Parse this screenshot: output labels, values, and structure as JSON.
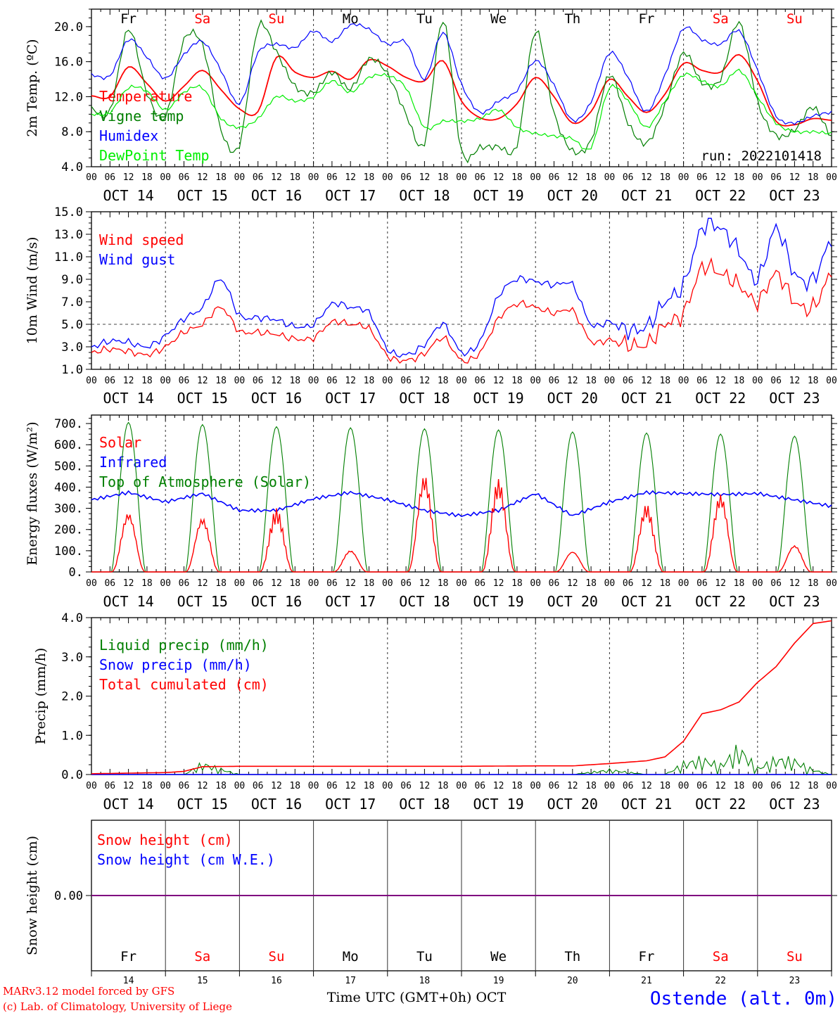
{
  "days": {
    "names": [
      "Fr",
      "Sa",
      "Su",
      "Mo",
      "Tu",
      "We",
      "Th",
      "Fr",
      "Sa",
      "Su"
    ],
    "colors": [
      "#000000",
      "#ff0000",
      "#ff0000",
      "#000000",
      "#000000",
      "#000000",
      "#000000",
      "#000000",
      "#ff0000",
      "#ff0000"
    ],
    "date_labels": [
      "OCT 14",
      "OCT 15",
      "OCT 16",
      "OCT 17",
      "OCT 18",
      "OCT 19",
      "OCT 20",
      "OCT 21",
      "OCT 22",
      "OCT 23"
    ],
    "day_numbers": [
      "14",
      "15",
      "16",
      "17",
      "18",
      "19",
      "20",
      "21",
      "22",
      "23"
    ],
    "hour_ticks": [
      "00",
      "06",
      "12",
      "18"
    ],
    "final_tick": "00"
  },
  "footer": {
    "model_line": "MARv3.12 model forced by GFS",
    "credit_line": "(c) Lab. of Climatology, University of Liege",
    "xlabel": "Time UTC (GMT+0h) OCT",
    "station": "Ostende (alt. 0m)"
  },
  "colors": {
    "red": "#ff0000",
    "green": "#007f00",
    "blue": "#0000ff",
    "lightgreen": "#00ee00",
    "purple": "#7f007f"
  },
  "chart_data": [
    {
      "type": "line",
      "ylabel": "2m Temp. (ºC)",
      "ylim": [
        4,
        22
      ],
      "yticks": [
        "4.0",
        "8.0",
        "12.0",
        "16.0",
        "20.0"
      ],
      "annotation": "run: 2022101418",
      "legend": [
        "Temperature",
        "Vigne temp",
        "Humidex",
        "DewPoint Temp"
      ],
      "x_hours": [
        0,
        6,
        12,
        18,
        24,
        30,
        36,
        42,
        48,
        54,
        60,
        66,
        72,
        78,
        84,
        90,
        96,
        102,
        108,
        114,
        120,
        126,
        132,
        138,
        144,
        150,
        156,
        162,
        168,
        174,
        180,
        186,
        192,
        198,
        204,
        210,
        216,
        222,
        228,
        234,
        240
      ],
      "series": [
        {
          "name": "Temperature",
          "color": "red",
          "values": [
            12.1,
            12.0,
            15.4,
            13.5,
            11.5,
            13.2,
            15.0,
            12.8,
            10.6,
            10.3,
            16.5,
            14.8,
            14.2,
            14.9,
            14.0,
            16.2,
            15.5,
            14.2,
            13.8,
            16.1,
            11.5,
            9.6,
            9.5,
            11.2,
            14.2,
            12.0,
            9.0,
            10.3,
            14.0,
            12.0,
            10.2,
            12.3,
            15.8,
            15.0,
            14.8,
            16.8,
            13.8,
            9.2,
            8.8,
            9.5,
            9.3
          ]
        },
        {
          "name": "Vigne temp",
          "color": "green",
          "values": [
            10.6,
            10.4,
            19.7,
            12.4,
            9.7,
            18.5,
            17.9,
            8.2,
            6.5,
            19.9,
            17.1,
            13.2,
            12.5,
            14.8,
            12.9,
            16.3,
            14.6,
            10.0,
            6.7,
            20.7,
            5.8,
            6.2,
            6.3,
            6.5,
            19.5,
            10.1,
            5.8,
            7.0,
            14.5,
            9.0,
            6.7,
            11.0,
            17.0,
            13.6,
            14.0,
            20.5,
            11.4,
            7.6,
            8.2,
            10.8,
            7.5
          ]
        },
        {
          "name": "Humidex",
          "color": "blue",
          "values": [
            14.5,
            14.4,
            18.5,
            16.5,
            14.1,
            16.8,
            18.3,
            15.0,
            11.2,
            17.0,
            18.0,
            17.6,
            19.5,
            18.3,
            20.2,
            19.7,
            18.0,
            18.2,
            14.0,
            19.3,
            13.4,
            10.2,
            11.5,
            12.7,
            16.1,
            13.3,
            9.3,
            11.4,
            17.0,
            14.2,
            10.3,
            14.5,
            19.8,
            18.5,
            18.0,
            19.5,
            15.0,
            9.8,
            9.0,
            9.8,
            10.2
          ]
        },
        {
          "name": "DewPoint Temp",
          "color": "lightgreen",
          "values": [
            10.0,
            10.2,
            13.0,
            12.6,
            10.5,
            12.5,
            13.0,
            9.5,
            8.5,
            9.5,
            12.0,
            11.5,
            12.0,
            13.8,
            12.5,
            14.2,
            14.4,
            13.0,
            8.5,
            9.2,
            9.2,
            9.5,
            10.5,
            8.5,
            7.8,
            7.5,
            7.2,
            6.2,
            13.0,
            11.5,
            8.5,
            11.5,
            14.5,
            13.8,
            13.2,
            15.0,
            12.0,
            9.0,
            8.0,
            8.0,
            7.8
          ]
        }
      ]
    },
    {
      "type": "line",
      "ylabel": "10m Wind (m/s)",
      "ylim": [
        1,
        15
      ],
      "yticks": [
        "1.0",
        "3.0",
        "5.0",
        "7.0",
        "9.0",
        "11.0",
        "13.0",
        "15.0"
      ],
      "reference_line": 5,
      "legend": [
        "Wind speed",
        "Wind gust"
      ],
      "x_hours": [
        0,
        6,
        12,
        18,
        24,
        30,
        36,
        42,
        48,
        54,
        60,
        66,
        72,
        78,
        84,
        90,
        96,
        102,
        108,
        114,
        120,
        126,
        132,
        138,
        144,
        150,
        156,
        162,
        168,
        174,
        180,
        186,
        192,
        198,
        204,
        210,
        216,
        222,
        228,
        234,
        240
      ],
      "series": [
        {
          "name": "Wind speed",
          "color": "red",
          "values": [
            2.5,
            2.8,
            2.6,
            2.3,
            3.0,
            4.3,
            5.0,
            6.5,
            4.4,
            4.3,
            4.1,
            3.7,
            3.8,
            5.2,
            5.0,
            4.6,
            2.2,
            1.8,
            2.4,
            3.8,
            1.8,
            2.5,
            5.5,
            6.8,
            6.5,
            6.0,
            6.2,
            3.5,
            3.6,
            3.2,
            3.2,
            5.0,
            6.0,
            10.0,
            9.5,
            8.5,
            7.0,
            9.5,
            7.0,
            6.5,
            9.5
          ]
        },
        {
          "name": "Wind gust",
          "color": "blue",
          "values": [
            3.0,
            3.5,
            3.4,
            3.0,
            4.0,
            5.5,
            6.5,
            9.0,
            5.8,
            5.6,
            5.4,
            4.8,
            5.0,
            6.8,
            6.5,
            6.0,
            2.8,
            2.3,
            3.2,
            5.0,
            2.5,
            3.5,
            7.5,
            9.0,
            8.8,
            8.5,
            8.5,
            5.0,
            5.2,
            4.5,
            4.8,
            7.0,
            8.5,
            13.5,
            13.5,
            11.5,
            9.0,
            13.5,
            9.5,
            9.0,
            12.5
          ]
        }
      ]
    },
    {
      "type": "line",
      "ylabel": "Energy fluxes (W/m²)",
      "ylim": [
        0,
        740
      ],
      "yticks": [
        "0.",
        "100.",
        "200.",
        "300.",
        "400.",
        "500.",
        "600.",
        "700."
      ],
      "legend": [
        "Solar",
        "Infrared",
        "Top of Atmosphere (Solar)"
      ],
      "toa_peaks": [
        705,
        695,
        685,
        680,
        675,
        670,
        660,
        655,
        650,
        640
      ],
      "solar_peaks": [
        285,
        260,
        300,
        105,
        460,
        440,
        100,
        320,
        370,
        130
      ],
      "infrared": {
        "x_hours": [
          0,
          12,
          24,
          36,
          48,
          60,
          72,
          84,
          96,
          108,
          120,
          132,
          144,
          156,
          168,
          180,
          192,
          204,
          216,
          228,
          240
        ],
        "values": [
          340,
          375,
          330,
          370,
          290,
          290,
          345,
          375,
          340,
          290,
          265,
          290,
          370,
          265,
          330,
          375,
          370,
          365,
          370,
          340,
          310
        ]
      }
    },
    {
      "type": "line",
      "ylabel": "Precip (mm/h)",
      "ylim": [
        0,
        4
      ],
      "yticks": [
        "0.0",
        "1.0",
        "2.0",
        "3.0",
        "4.0"
      ],
      "legend": [
        "Liquid precip (mm/h)",
        "Snow precip (mm/h)",
        "Total cumulated (cm)"
      ],
      "x_hours": [
        0,
        24,
        30,
        36,
        48,
        72,
        96,
        120,
        144,
        156,
        168,
        180,
        186,
        192,
        198,
        204,
        210,
        216,
        222,
        228,
        234,
        240
      ],
      "series": [
        {
          "name": "Total cumulated (cm)",
          "color": "red",
          "values": [
            0.02,
            0.05,
            0.08,
            0.2,
            0.21,
            0.21,
            0.21,
            0.21,
            0.22,
            0.22,
            0.28,
            0.35,
            0.45,
            0.85,
            1.55,
            1.65,
            1.85,
            2.35,
            2.75,
            3.35,
            3.85,
            3.92
          ]
        },
        {
          "name": "Liquid precip (mm/h)",
          "color": "green",
          "values": [
            0.0,
            0.0,
            0.0,
            0.35,
            0.0,
            0.0,
            0.0,
            0.0,
            0.0,
            0.0,
            0.15,
            0.0,
            0.0,
            0.35,
            0.5,
            0.3,
            0.85,
            0.2,
            0.5,
            0.45,
            0.15,
            0.0
          ]
        }
      ]
    },
    {
      "type": "line",
      "ylabel": "Snow height (cm)",
      "ylim": [
        -1,
        1
      ],
      "yticks": [
        "0.00"
      ],
      "legend": [
        "Snow height (cm)",
        "Snow height (cm W.E.)"
      ],
      "x_hours": [
        0,
        240
      ],
      "series": [
        {
          "name": "Snow height (cm)",
          "color": "red",
          "values": [
            0,
            0
          ]
        },
        {
          "name": "Snow height (cm W.E.)",
          "color": "blue",
          "values": [
            0,
            0
          ]
        }
      ]
    }
  ]
}
